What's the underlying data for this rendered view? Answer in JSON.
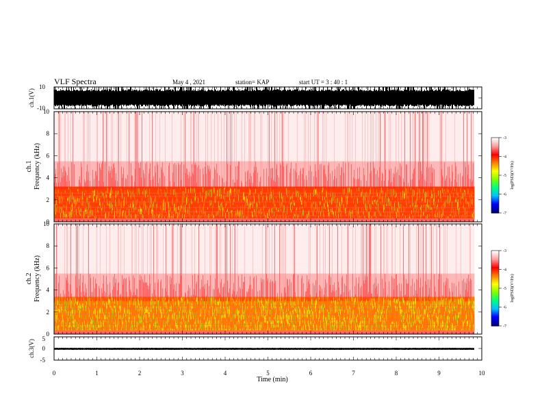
{
  "header": {
    "title": "VLF Spectra",
    "date": "May 4 , 2021",
    "station": "station= KAP",
    "start": "start  UT =   3 : 40 : 1"
  },
  "chart_data": [
    {
      "type": "line",
      "name": "ch1-waveform",
      "ylabel": "ch.1(V)",
      "ylim": [
        -10,
        10
      ],
      "yticks": [
        "10",
        "-10"
      ],
      "xlim": [
        0,
        10
      ],
      "data_extent_min": 9.83,
      "envelope": {
        "upper": 8,
        "lower": -8,
        "spikes_to_full_scale": true
      }
    },
    {
      "type": "heatmap",
      "name": "ch1-spectrogram",
      "ylabel": "ch.1\nFrequency (kHz)",
      "ylim": [
        0,
        10
      ],
      "yticks": [
        "0",
        "2",
        "4",
        "6",
        "8",
        "10"
      ],
      "xlim": [
        0,
        10
      ],
      "data_extent_min": 9.83,
      "bands": [
        {
          "from_khz": 0.0,
          "to_khz": 0.3,
          "log_psd": -3.6
        },
        {
          "from_khz": 0.3,
          "to_khz": 3.2,
          "log_psd": -4.1,
          "speckle": "yellow-green"
        },
        {
          "from_khz": 3.2,
          "to_khz": 5.5,
          "log_psd": -3.9,
          "speckle": "red-sparse"
        },
        {
          "from_khz": 5.5,
          "to_khz": 10.0,
          "log_psd": -3.7,
          "speckle": "faint"
        }
      ],
      "colorbar": {
        "label": "log(PSD)(V²/Hz)",
        "range": [
          -7,
          -3
        ],
        "ticks": [
          "-3",
          "-4",
          "-5",
          "-6",
          "-7"
        ]
      }
    },
    {
      "type": "heatmap",
      "name": "ch2-spectrogram",
      "ylabel": "ch.2\nFrequency (kHz)",
      "ylim": [
        0,
        10
      ],
      "yticks": [
        "0",
        "2",
        "4",
        "6",
        "8",
        "10"
      ],
      "xlim": [
        0,
        10
      ],
      "data_extent_min": 9.83,
      "bands": [
        {
          "from_khz": 0.0,
          "to_khz": 0.3,
          "log_psd": -3.6
        },
        {
          "from_khz": 0.3,
          "to_khz": 3.4,
          "log_psd": -4.3,
          "speckle": "yellow-green-dense"
        },
        {
          "from_khz": 3.4,
          "to_khz": 5.5,
          "log_psd": -3.9,
          "speckle": "red-sparse"
        },
        {
          "from_khz": 5.5,
          "to_khz": 10.0,
          "log_psd": -3.7,
          "speckle": "faint"
        }
      ],
      "colorbar": {
        "label": "log(PSD)(V²/Hz)",
        "range": [
          -7,
          -3
        ],
        "ticks": [
          "-3",
          "-4",
          "-5",
          "-6",
          "-7"
        ]
      }
    },
    {
      "type": "line",
      "name": "ch3-waveform",
      "ylabel": "ch.3(V)",
      "ylim": [
        -5,
        5
      ],
      "yticks": [
        "5",
        "0",
        "-5"
      ],
      "xlim": [
        0,
        10
      ],
      "data_extent_min": 9.83,
      "envelope": {
        "upper": 0.5,
        "lower": -0.4,
        "offset": -0.2
      }
    }
  ],
  "xaxis": {
    "label": "Time (min)",
    "ticks": [
      "0",
      "1",
      "2",
      "3",
      "4",
      "5",
      "6",
      "7",
      "8",
      "9",
      "10"
    ]
  },
  "colors": {
    "trace": "#000000",
    "frame": "#000000",
    "colormap": [
      "#000080",
      "#0000ff",
      "#00c0ff",
      "#00ff80",
      "#80ff00",
      "#ffff00",
      "#ff8000",
      "#ff0000",
      "#ff9a9a",
      "#ffffff"
    ]
  }
}
